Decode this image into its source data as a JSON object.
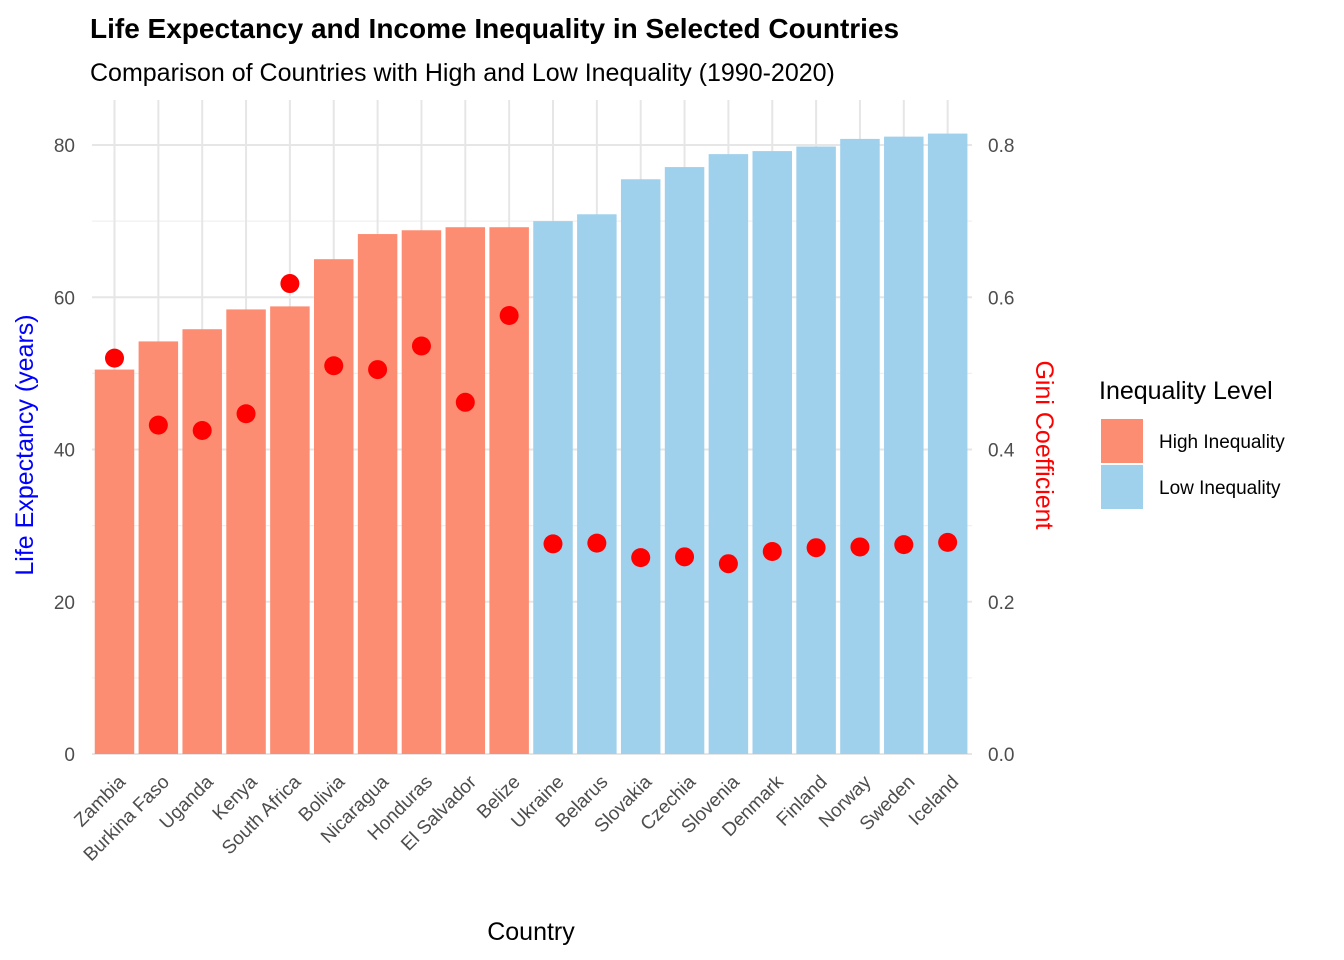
{
  "chart_data": {
    "type": "bar",
    "title": "Life Expectancy and Income Inequality in Selected Countries",
    "subtitle": "Comparison of Countries with High and Low Inequality (1990-2020)",
    "xlabel": "Country",
    "ylabel": "Life Expectancy (years)",
    "y2label": "Gini Coefficient",
    "ylim": [
      0,
      85
    ],
    "y2lim": [
      0,
      0.85
    ],
    "y_ticks": [
      "0",
      "20",
      "40",
      "60",
      "80"
    ],
    "y2_ticks": [
      "0.0",
      "0.2",
      "0.4",
      "0.6",
      "0.8"
    ],
    "grid": true,
    "legend_position": "right",
    "legend": {
      "title": "Inequality Level",
      "entries": [
        {
          "label": "High Inequality",
          "color": "#fc8d72"
        },
        {
          "label": "Low Inequality",
          "color": "#9fd0ec"
        }
      ]
    },
    "colors": {
      "high_bar": "#fc8d72",
      "low_bar": "#9fd0ec",
      "point": "#ff0000",
      "ylabel": "#0000ff",
      "y2label": "#ff0000"
    },
    "categories": [
      "Zambia",
      "Burkina Faso",
      "Uganda",
      "Kenya",
      "South Africa",
      "Bolivia",
      "Nicaragua",
      "Honduras",
      "El Salvador",
      "Belize",
      "Ukraine",
      "Belarus",
      "Slovakia",
      "Czechia",
      "Slovenia",
      "Denmark",
      "Finland",
      "Norway",
      "Sweden",
      "Iceland"
    ],
    "group": [
      "High Inequality",
      "High Inequality",
      "High Inequality",
      "High Inequality",
      "High Inequality",
      "High Inequality",
      "High Inequality",
      "High Inequality",
      "High Inequality",
      "High Inequality",
      "Low Inequality",
      "Low Inequality",
      "Low Inequality",
      "Low Inequality",
      "Low Inequality",
      "Low Inequality",
      "Low Inequality",
      "Low Inequality",
      "Low Inequality",
      "Low Inequality"
    ],
    "life_expectancy": [
      50.5,
      54.2,
      55.8,
      58.4,
      58.8,
      65.0,
      68.3,
      68.8,
      69.2,
      69.2,
      70.0,
      70.9,
      75.5,
      77.1,
      78.8,
      79.2,
      79.8,
      80.8,
      81.1,
      81.5
    ],
    "gini": [
      0.52,
      0.432,
      0.425,
      0.447,
      0.618,
      0.51,
      0.505,
      0.536,
      0.462,
      0.576,
      0.276,
      0.277,
      0.258,
      0.259,
      0.25,
      0.266,
      0.271,
      0.272,
      0.275,
      0.278
    ]
  }
}
